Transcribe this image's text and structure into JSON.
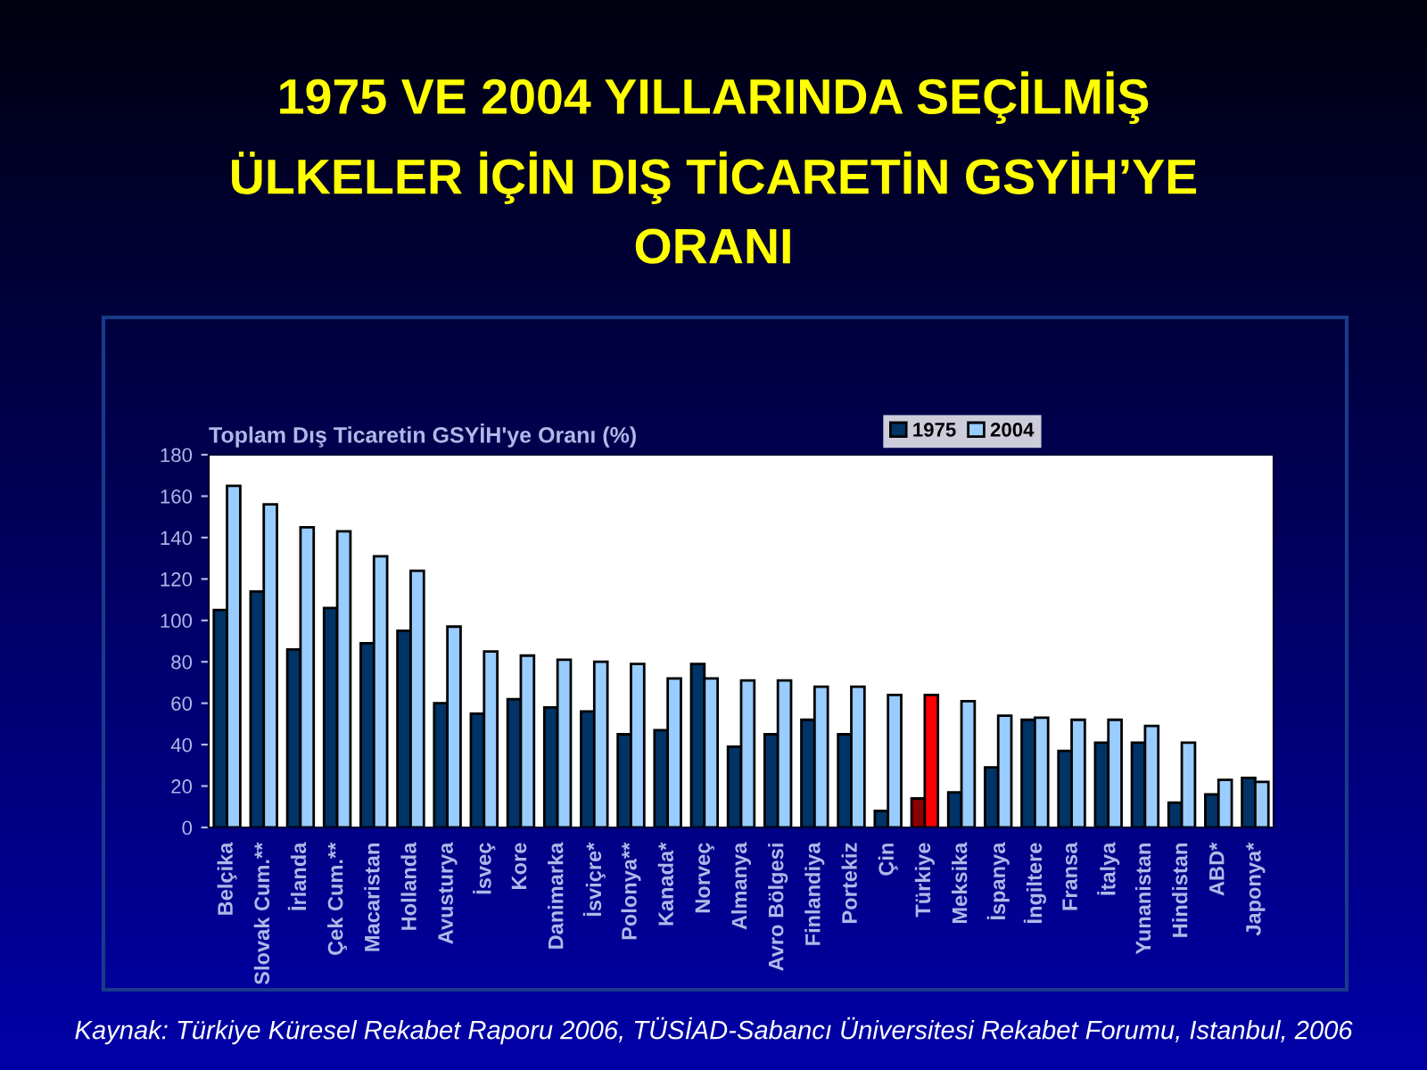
{
  "chart_data": {
    "type": "bar",
    "title": "1975 VE 2004 YILLARINDA SEÇİLMİŞ\nÜLKELER İÇİN DIŞ TİCARETİN GSYİH’YE\nORANI",
    "ylabel": "Toplam Dış Ticaretin GSYİH'ye Oranı (%)",
    "categories": [
      "Belçika",
      "Slovak Cum.**",
      "İrlanda",
      "Çek Cum.**",
      "Macaristan",
      "Hollanda",
      "Avusturya",
      "İsveç",
      "Kore",
      "Danimarka",
      "İsviçre*",
      "Polonya**",
      "Kanada*",
      "Norveç",
      "Almanya",
      "Avro Bölgesi",
      "Finlandiya",
      "Portekiz",
      "Çin",
      "Türkiye",
      "Meksika",
      "İspanya",
      "İngiltere",
      "Fransa",
      "İtalya",
      "Yunanistan",
      "Hindistan",
      "ABD*",
      "Japonya*"
    ],
    "series": [
      {
        "name": "1975",
        "color": "#003366",
        "colors": [
          "#003366",
          "#003366",
          "#003366",
          "#003366",
          "#003366",
          "#003366",
          "#003366",
          "#003366",
          "#003366",
          "#003366",
          "#003366",
          "#003366",
          "#003366",
          "#003366",
          "#003366",
          "#003366",
          "#003366",
          "#003366",
          "#003366",
          "#8b0000",
          "#003366",
          "#003366",
          "#003366",
          "#003366",
          "#003366",
          "#003366",
          "#003366",
          "#003366",
          "#003366"
        ],
        "values": [
          105,
          114,
          86,
          106,
          89,
          95,
          60,
          55,
          62,
          58,
          56,
          45,
          47,
          79,
          39,
          45,
          52,
          45,
          8,
          14,
          17,
          29,
          52,
          37,
          41,
          41,
          12,
          16,
          24
        ]
      },
      {
        "name": "2004",
        "color": "#99ccff",
        "colors": [
          "#99ccff",
          "#99ccff",
          "#99ccff",
          "#99ccff",
          "#99ccff",
          "#99ccff",
          "#99ccff",
          "#99ccff",
          "#99ccff",
          "#99ccff",
          "#99ccff",
          "#99ccff",
          "#99ccff",
          "#99ccff",
          "#99ccff",
          "#99ccff",
          "#99ccff",
          "#99ccff",
          "#99ccff",
          "#ff0000",
          "#99ccff",
          "#99ccff",
          "#99ccff",
          "#99ccff",
          "#99ccff",
          "#99ccff",
          "#99ccff",
          "#99ccff",
          "#99ccff"
        ],
        "values": [
          165,
          156,
          145,
          143,
          131,
          124,
          97,
          85,
          83,
          81,
          80,
          79,
          72,
          72,
          71,
          71,
          68,
          68,
          64,
          64,
          61,
          54,
          53,
          52,
          52,
          49,
          41,
          23,
          22
        ]
      }
    ],
    "ylim": [
      0,
      180
    ],
    "yticks": [
      0,
      20,
      40,
      60,
      80,
      100,
      120,
      140,
      160,
      180
    ],
    "grid": false,
    "legend": "top right",
    "annotations": [
      "Kaynak: Türkiye Küresel Rekabet Raporu 2006, TÜSİAD-Sabancı Üniversitesi Rekabet Forumu, Istanbul, 2006"
    ]
  }
}
